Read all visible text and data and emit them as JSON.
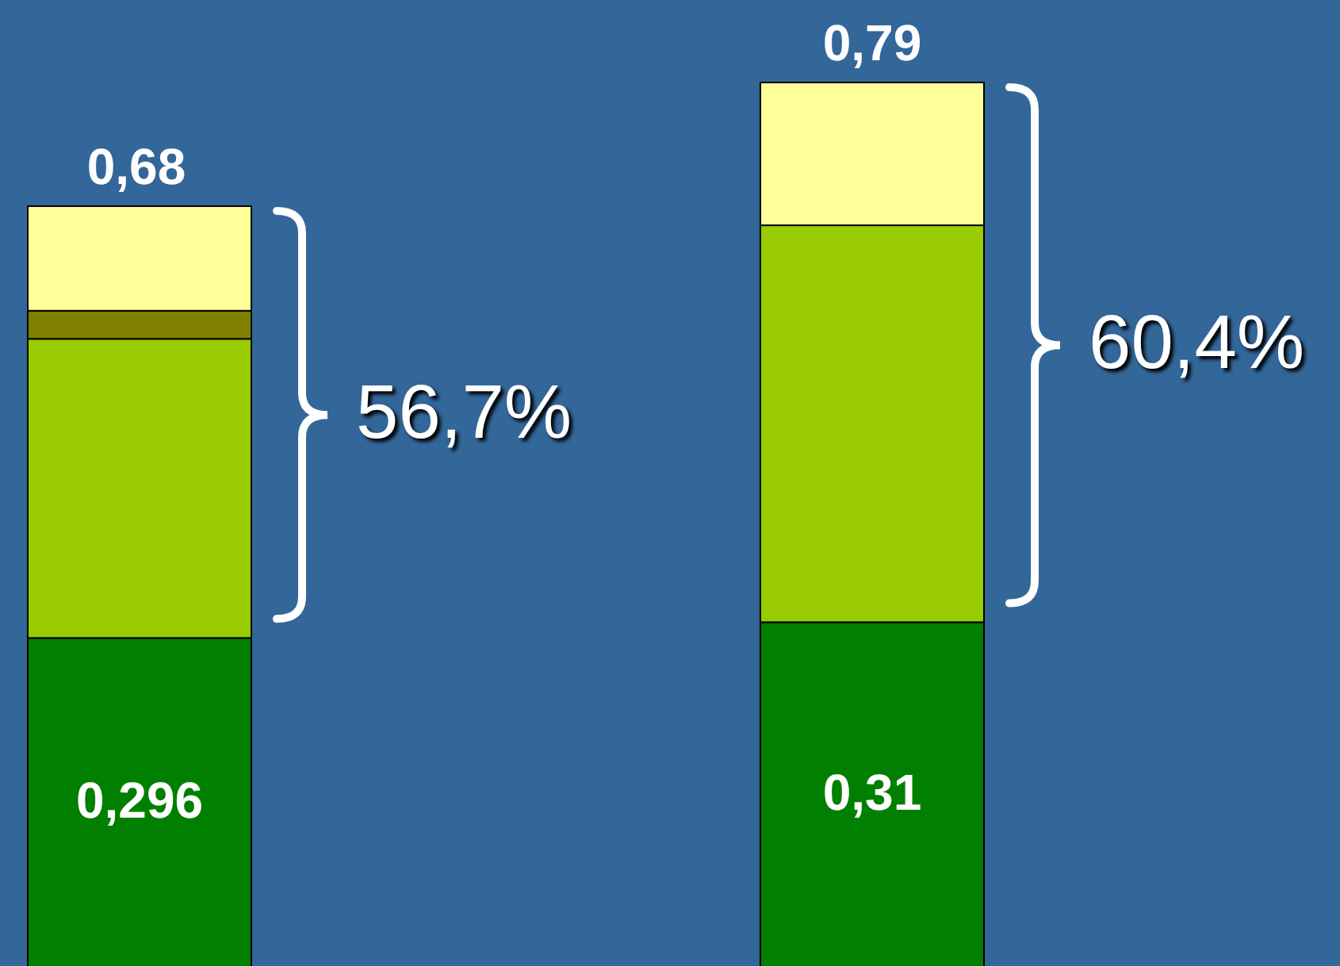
{
  "chart_data": {
    "type": "bar",
    "stacked": true,
    "categories": [
      null,
      null
    ],
    "series": [
      {
        "color": "#007f00",
        "values": [
          0.296,
          0.31
        ],
        "value_labels": [
          "0,296",
          "0,31"
        ]
      },
      {
        "color": "#99cc00",
        "values": [
          0.266,
          0.353
        ]
      },
      {
        "color": "#808000",
        "values": [
          0.025,
          null
        ]
      },
      {
        "color": "#ffff99",
        "values": [
          0.093,
          0.127
        ]
      }
    ],
    "totals": [
      "0,68",
      "0,79"
    ],
    "annotations": [
      "56,7%",
      "60,4%"
    ]
  }
}
